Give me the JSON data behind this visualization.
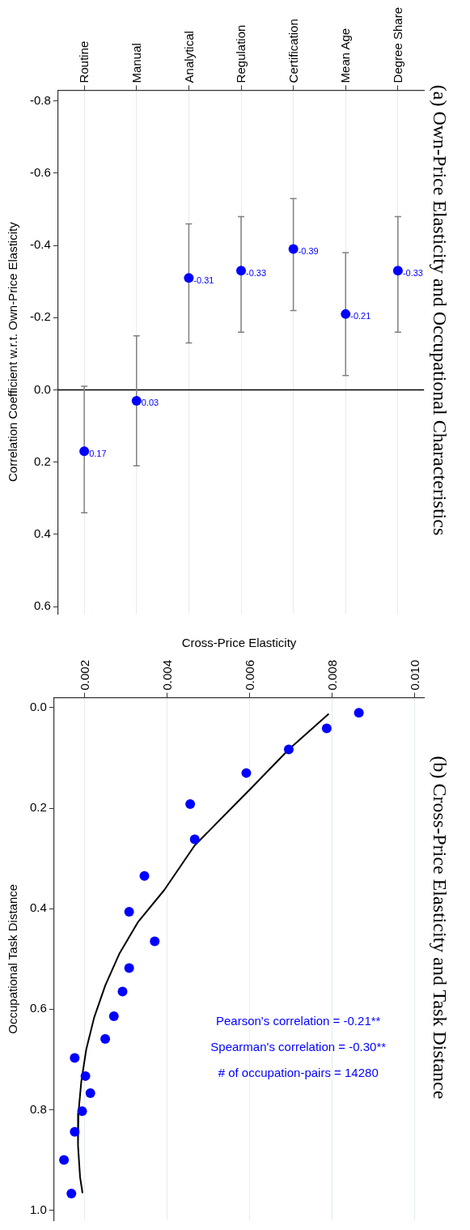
{
  "chart_data": [
    {
      "type": "scatter",
      "title": "(a) Own-Price Elasticity and Occupational Characteristics",
      "ylabel": "Correlation Coefficient w.r.t. Own-Price Elasticity",
      "categories": [
        "Routine",
        "Manual",
        "Analytical",
        "Regulation",
        "Certification",
        "Mean Age",
        "Degree Share"
      ],
      "series": [
        {
          "color": "#0000ff",
          "values": [
            0.17,
            0.03,
            -0.31,
            -0.33,
            -0.39,
            -0.21,
            -0.33
          ],
          "errors": [
            [
              -0.01,
              0.34
            ],
            [
              -0.15,
              0.21
            ],
            [
              -0.46,
              -0.13
            ],
            [
              -0.48,
              -0.16
            ],
            [
              -0.53,
              -0.22
            ],
            [
              -0.38,
              -0.04
            ],
            [
              -0.48,
              -0.16
            ]
          ]
        }
      ],
      "ylim": [
        0.62,
        -0.83
      ],
      "yticks": [
        {
          "value": -0.8,
          "label": "-0.8"
        },
        {
          "value": -0.6,
          "label": "-0.6"
        },
        {
          "value": -0.4,
          "label": "-0.4"
        },
        {
          "value": -0.2,
          "label": "-0.2"
        },
        {
          "value": 0,
          "label": "0.0"
        },
        {
          "value": 0.2,
          "label": "0.2"
        },
        {
          "value": 0.4,
          "label": "0.4"
        },
        {
          "value": 0.6,
          "label": "0.6"
        }
      ],
      "ref_lines": [
        {
          "axis": "y",
          "value": 0,
          "color": "#000000"
        }
      ],
      "data_labels": true,
      "grid": "x",
      "legend": false,
      "marker": "circle"
    },
    {
      "type": "scatter",
      "title": "(b) Cross-Price Elasticity and Task Distance",
      "xlabel": "Cross-Price Elasticity",
      "ylabel": "Occupational Task Distance",
      "annotations": [
        "Pearson's correlation = -0.21**",
        "Spearman's correlation = -0.30**",
        "# of occupation-pairs = 14280"
      ],
      "series": [
        {
          "type": "scatter",
          "color": "#0000ff",
          "x": [
            0.00865,
            0.00787,
            0.00695,
            0.00592,
            0.00456,
            0.00467,
            0.00345,
            0.00308,
            0.0037,
            0.00308,
            0.00292,
            0.00271,
            0.0025,
            0.00176,
            0.00202,
            0.00214,
            0.00194,
            0.00176,
            0.0015,
            0.00168
          ],
          "values": [
            0.01,
            0.041,
            0.083,
            0.13,
            0.192,
            0.262,
            0.335,
            0.406,
            0.465,
            0.518,
            0.565,
            0.614,
            0.659,
            0.697,
            0.733,
            0.767,
            0.803,
            0.844,
            0.9,
            0.967
          ]
        },
        {
          "type": "line",
          "color": "#000000",
          "marker": "none",
          "x": [
            0.00792,
            0.00695,
            0.00604,
            0.00467,
            0.00393,
            0.0033,
            0.00284,
            0.0025,
            0.00223,
            0.00204,
            0.00192,
            0.00185,
            0.00184,
            0.00189,
            0.00195
          ],
          "values": [
            0.012,
            0.083,
            0.16,
            0.274,
            0.363,
            0.426,
            0.49,
            0.553,
            0.617,
            0.68,
            0.744,
            0.807,
            0.871,
            0.934,
            0.966
          ]
        }
      ],
      "xlim": [
        0.00126,
        0.01023
      ],
      "xticks": [
        0.002,
        0.004,
        0.006,
        0.008,
        {
          "value": 0.01,
          "label": "0.010"
        }
      ],
      "ylim": [
        1.02,
        -0.02
      ],
      "yticks": [
        {
          "value": 0,
          "label": "0.0"
        },
        0.2,
        0.4,
        0.6,
        0.8,
        {
          "value": 1,
          "label": "1.0"
        }
      ],
      "grid": "x",
      "legend": false,
      "marker": "circle"
    }
  ]
}
